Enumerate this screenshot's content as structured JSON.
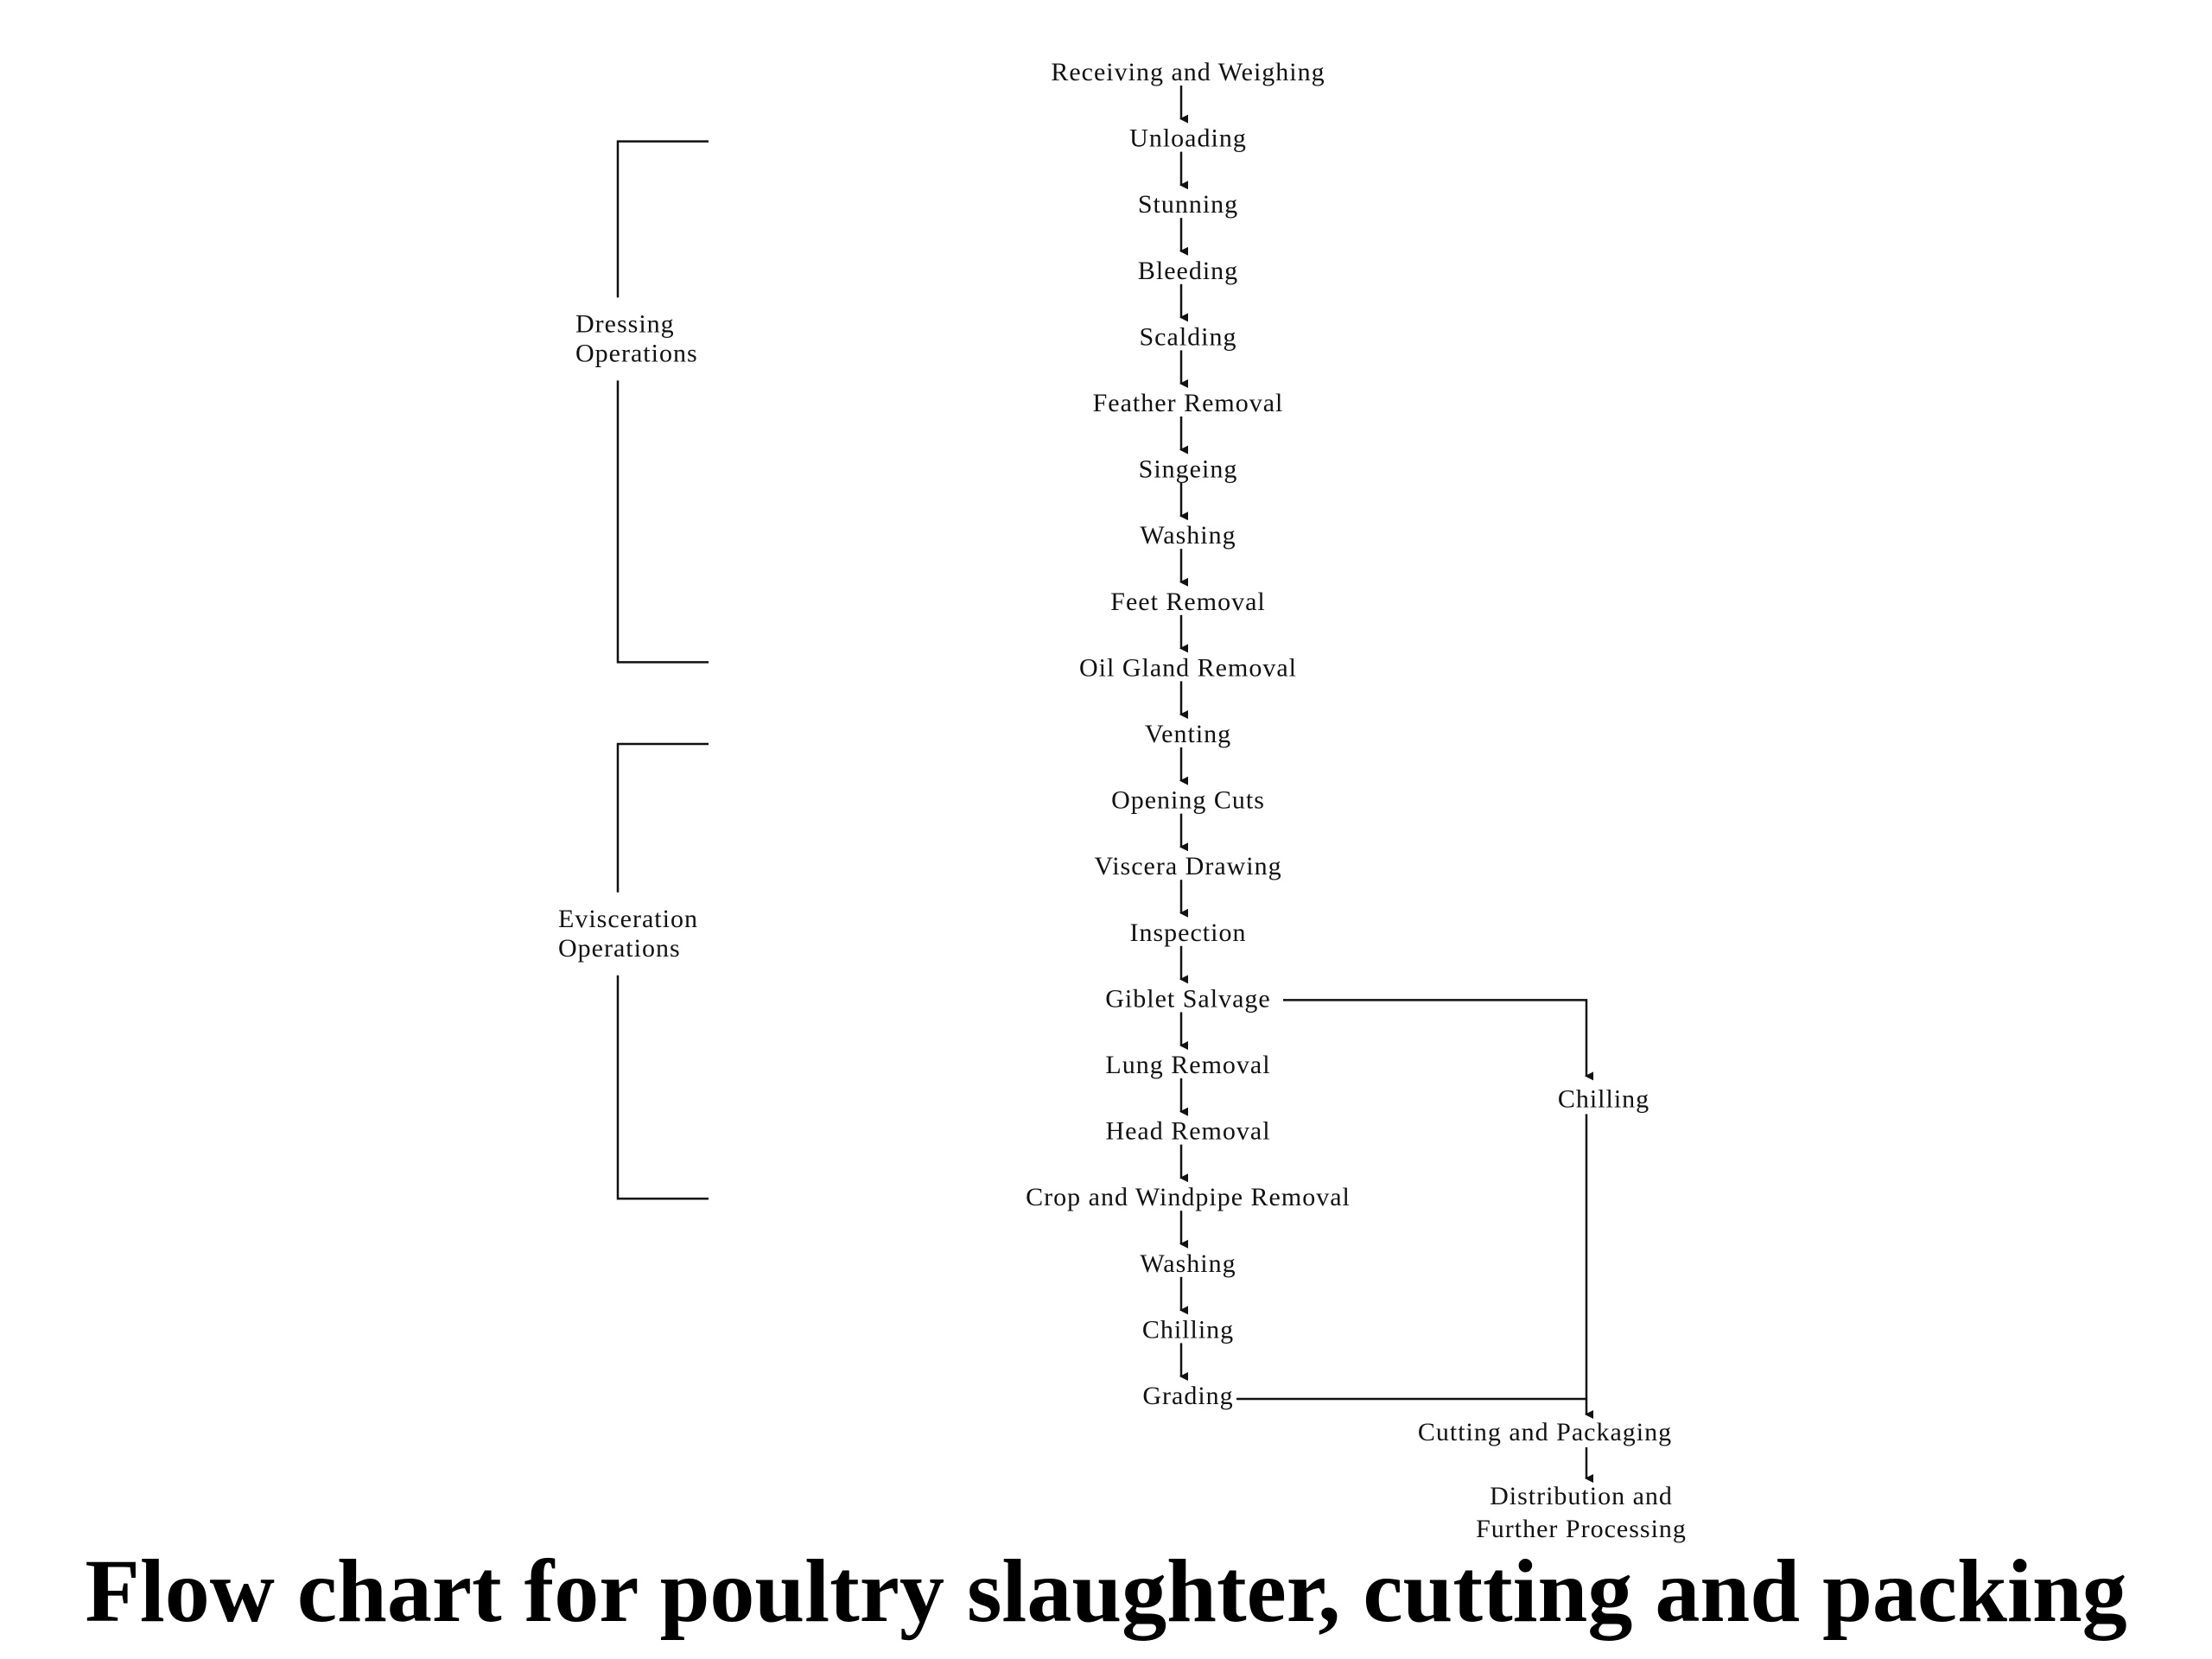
{
  "title": "Flow chart for poultry slaughter, cutting and packing",
  "steps": [
    "Receiving and Weighing",
    "Unloading",
    "Stunning",
    "Bleeding",
    "Scalding",
    "Feather Removal",
    "Singeing",
    "Washing",
    "Feet Removal",
    "Oil Gland Removal",
    "Venting",
    "Opening Cuts",
    "Viscera Drawing",
    "Inspection",
    "Giblet Salvage",
    "Lung Removal",
    "Head Removal",
    "Crop and Windpipe Removal",
    "Washing",
    "Chilling",
    "Grading"
  ],
  "groups": [
    {
      "lines": [
        "Dressing",
        "Operations"
      ]
    },
    {
      "lines": [
        "Evisceration",
        "Operations"
      ]
    }
  ],
  "side_branch": {
    "chilling": "Chilling",
    "cutting_packaging": "Cutting and  Packaging",
    "distribution": [
      "Distribution and",
      "Further Processing"
    ]
  }
}
